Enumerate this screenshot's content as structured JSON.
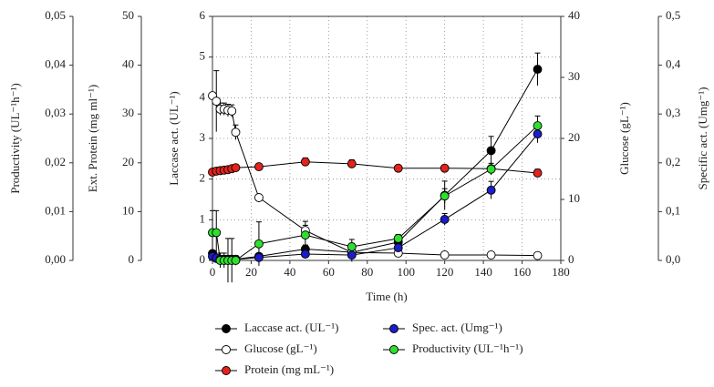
{
  "chart_data": {
    "type": "line",
    "x": [
      0,
      2,
      4,
      6,
      8,
      10,
      12,
      24,
      48,
      72,
      96,
      120,
      144,
      168
    ],
    "xlabel": "Time (h)",
    "xlim": [
      0,
      180
    ],
    "xticks": [
      0,
      20,
      40,
      60,
      80,
      100,
      120,
      140,
      160,
      180
    ],
    "ylabel": "Laccase act. (UL⁻¹)",
    "ylim": [
      0,
      6
    ],
    "yticks": [
      0,
      1,
      2,
      3,
      4,
      5,
      6
    ],
    "y2label": "Glucose (gL⁻¹)",
    "y2lim": [
      0,
      40
    ],
    "y2ticks": [
      0,
      10,
      20,
      30,
      40
    ],
    "y3label": "Ext. Protein (mg ml⁻¹)",
    "y3lim": [
      0,
      50
    ],
    "y3ticks": [
      0,
      10,
      20,
      30,
      40,
      50
    ],
    "y4label": "Productivity (UL⁻¹h⁻¹)",
    "y4lim": [
      0,
      0.05
    ],
    "y4ticks": [
      {
        "value": 0,
        "label": "0,00"
      },
      {
        "value": 0.01,
        "label": "0,01"
      },
      {
        "value": 0.02,
        "label": "0,02"
      },
      {
        "value": 0.03,
        "label": "0,03"
      },
      {
        "value": 0.04,
        "label": "0,04"
      },
      {
        "value": 0.05,
        "label": "0,05"
      }
    ],
    "y5label": "Specific act. (Umg⁻¹)",
    "y5lim": [
      0,
      0.5
    ],
    "y5ticks": [
      {
        "value": 0,
        "label": "0,0"
      },
      {
        "value": 0.1,
        "label": "0,1"
      },
      {
        "value": 0.2,
        "label": "0,2"
      },
      {
        "value": 0.3,
        "label": "0,3"
      },
      {
        "value": 0.4,
        "label": "0,4"
      },
      {
        "value": 0.5,
        "label": "0,5"
      }
    ],
    "grid": true,
    "series": [
      {
        "name": "Laccase act. (UL⁻¹)",
        "color": "#000000",
        "axis": "y",
        "values": [
          0.17,
          0.05,
          0.03,
          0.03,
          0.03,
          0.03,
          0.03,
          0.1,
          0.28,
          0.2,
          0.45,
          1.6,
          2.7,
          4.7
        ],
        "errors": [
          0.05,
          0.02,
          0.02,
          0.02,
          0.02,
          0.02,
          0.02,
          0.05,
          0.1,
          0.08,
          0.15,
          0.35,
          0.35,
          0.4
        ]
      },
      {
        "name": "Glucose (gL⁻¹)",
        "color": "#ffffff",
        "axis": "y2",
        "values": [
          27,
          26.1,
          24.8,
          24.8,
          24.6,
          24.5,
          21,
          10.3,
          4.9,
          1.3,
          1.2,
          0.9,
          0.9,
          0.8
        ],
        "errors": [
          0.5,
          5,
          1,
          1,
          1,
          1,
          1.2,
          0.5,
          1.5,
          1.5,
          0.5,
          0.3,
          0.3,
          0.3
        ]
      },
      {
        "name": "Protein (mg mL⁻¹)",
        "color": "#e3231c",
        "axis": "y3",
        "values": [
          18.1,
          18.3,
          18.4,
          18.5,
          18.6,
          18.8,
          19,
          19.2,
          20.2,
          19.8,
          18.9,
          18.9,
          18.8,
          17.9
        ],
        "errors": [
          0.5,
          0.5,
          0.5,
          0.5,
          0.5,
          0.5,
          0.5,
          0.6,
          0.8,
          0.8,
          0.6,
          0.6,
          0.6,
          0.8
        ]
      },
      {
        "name": "Spec. act. (Umg⁻¹)",
        "color": "#1c1cc8",
        "axis": "y5",
        "values": [
          0.008,
          0.005,
          0.002,
          0.002,
          0.002,
          0.002,
          0.002,
          0.006,
          0.013,
          0.011,
          0.026,
          0.084,
          0.144,
          0.259
        ],
        "errors": [
          0.003,
          0.002,
          0.002,
          0.002,
          0.002,
          0.002,
          0.002,
          0.003,
          0.005,
          0.005,
          0.008,
          0.012,
          0.018,
          0.018
        ]
      },
      {
        "name": "Productivity (UL⁻¹h⁻¹)",
        "color": "#2ee02e",
        "axis": "y4",
        "values": [
          0.0057,
          0.0057,
          0,
          0,
          0,
          0,
          0,
          0.0034,
          0.0052,
          0.0028,
          0.0045,
          0.0132,
          0.0187,
          0.0276
        ],
        "errors": [
          0.0045,
          0.0045,
          0.0015,
          0.0015,
          0.0045,
          0.0045,
          0.001,
          0.0045,
          0.002,
          0.0015,
          0.0008,
          0.0015,
          0.0012,
          0.002
        ]
      }
    ]
  }
}
